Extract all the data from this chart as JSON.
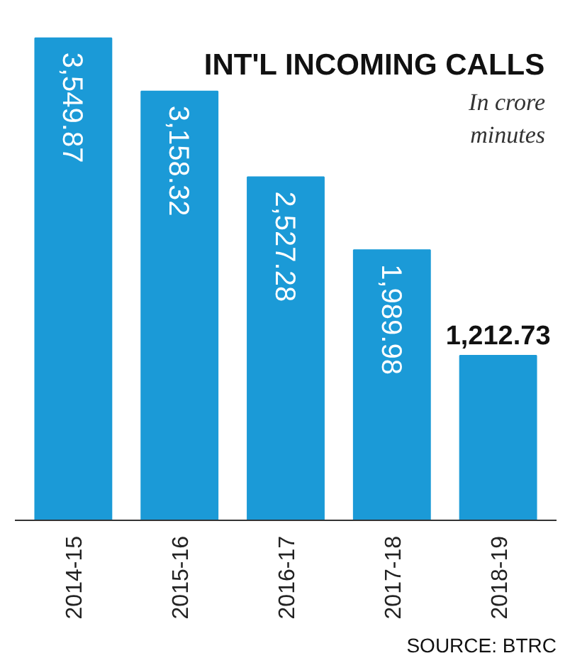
{
  "chart_data": {
    "type": "bar",
    "title": "INT'L INCOMING CALLS",
    "subtitle": "In crore minutes",
    "categories": [
      "2014-15",
      "2015-16",
      "2016-17",
      "2017-18",
      "2018-19"
    ],
    "values": [
      3549.87,
      3158.32,
      2527.28,
      1989.98,
      1212.73
    ],
    "value_labels": [
      "3,549.87",
      "3,158.32",
      "2,527.28",
      "1,989.98",
      "1,212.73"
    ],
    "color": "#1b9ad7",
    "annotations": [
      "SOURCE: BTRC"
    ]
  }
}
